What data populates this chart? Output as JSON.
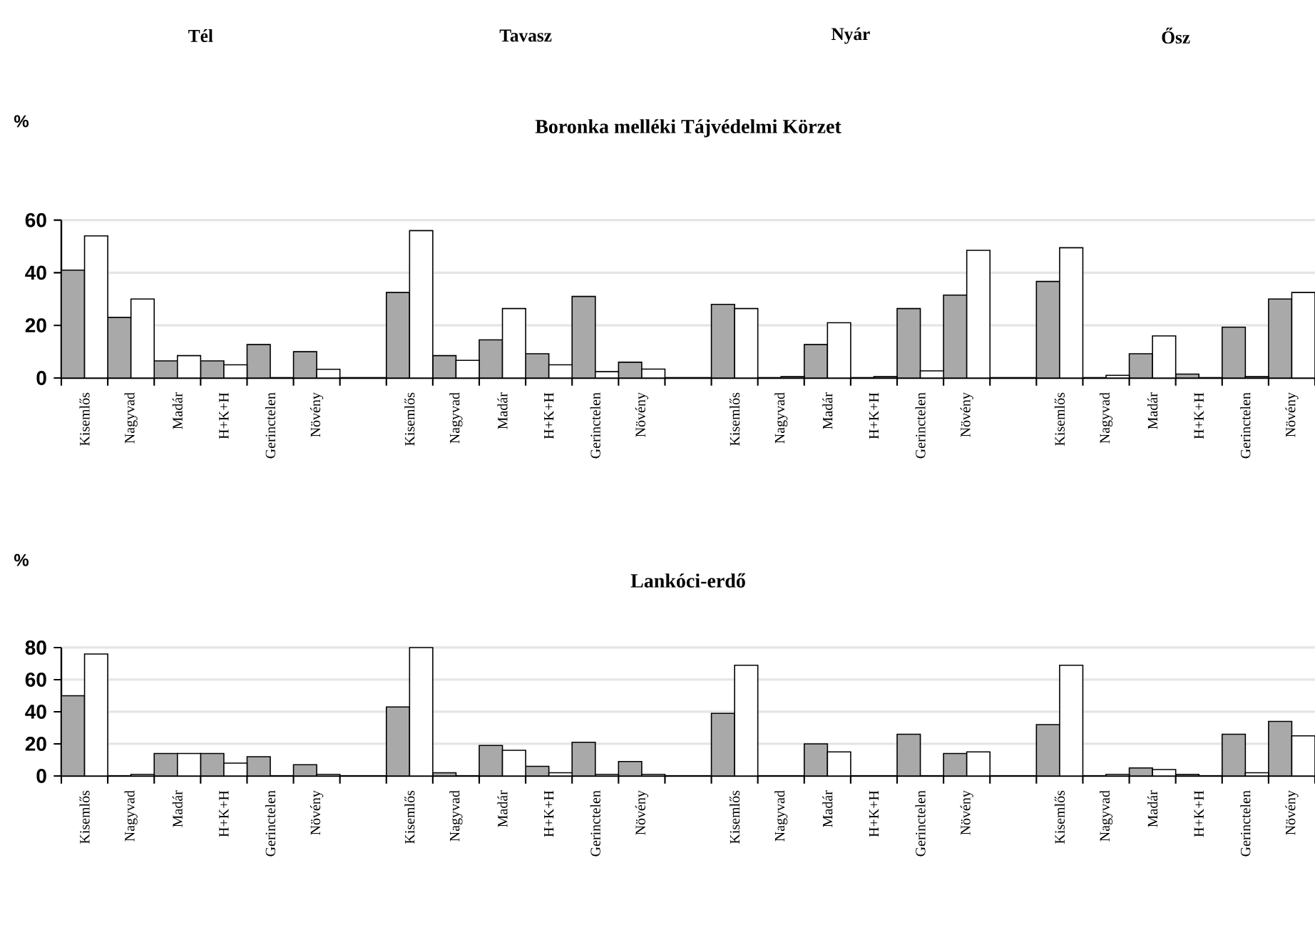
{
  "chart_data": [
    {
      "type": "bar",
      "title": "Boronka melléki Tájvédelmi Körzet",
      "ylabel": "%",
      "annotations": [
        "Tél",
        "Tavasz",
        "Nyár",
        "Ősz"
      ],
      "categories": [
        "Kisemlős",
        "Nagyvad",
        "Madár",
        "H+K+H",
        "Gerinctelen",
        "Növény",
        null,
        "Kisemlős",
        "Nagyvad",
        "Madár",
        "H+K+H",
        "Gerinctelen",
        "Növény",
        null,
        "Kisemlős",
        "Nagyvad",
        "Madár",
        "H+K+H",
        "Gerinctelen",
        "Növény",
        null,
        "Kisemlős",
        "Nagyvad",
        "Madár",
        "H+K+H",
        "Gerinctelen",
        "Növény"
      ],
      "series": [
        {
          "color": "#a9a9a9",
          "values": [
            41,
            23,
            6.5,
            6.5,
            12.7,
            10,
            null,
            32.5,
            8.5,
            14.5,
            9.2,
            31,
            6,
            null,
            28,
            null,
            12.7,
            null,
            26.4,
            31.5,
            null,
            36.7,
            null,
            9.2,
            1.5,
            19.3,
            30
          ]
        },
        {
          "color": "#ffffff",
          "values": [
            54,
            30,
            8.5,
            5,
            null,
            3.3,
            null,
            56,
            6.7,
            26.4,
            5,
            2.4,
            3.4,
            null,
            26.4,
            0.5,
            21,
            0.5,
            2.7,
            48.5,
            null,
            49.5,
            1,
            16,
            null,
            0.5,
            32.5
          ]
        }
      ],
      "ylim": [
        0,
        60
      ],
      "yticks": [
        0,
        20,
        40,
        60
      ],
      "grid": "y"
    },
    {
      "type": "bar",
      "title": "Lankóci-erdő",
      "ylabel": "%",
      "categories": [
        "Kisemlős",
        "Nagyvad",
        "Madár",
        "H+K+H",
        "Gerinctelen",
        "Növény",
        null,
        "Kisemlős",
        "Nagyvad",
        "Madár",
        "H+K+H",
        "Gerinctelen",
        "Növény",
        null,
        "Kisemlős",
        "Nagyvad",
        "Madár",
        "H+K+H",
        "Gerinctelen",
        "Növény",
        null,
        "Kisemlős",
        "Nagyvad",
        "Madár",
        "H+K+H",
        "Gerinctelen",
        "Növény"
      ],
      "series": [
        {
          "color": "#a9a9a9",
          "values": [
            50,
            null,
            14,
            14,
            12,
            7,
            null,
            43,
            2,
            19,
            6,
            21,
            9,
            null,
            39,
            null,
            20,
            null,
            26,
            14,
            null,
            32,
            null,
            5,
            1,
            26,
            34
          ]
        },
        {
          "color": "#ffffff",
          "values": [
            76,
            1,
            14,
            8,
            null,
            1,
            null,
            80,
            null,
            16,
            2,
            1,
            1,
            null,
            69,
            null,
            15,
            null,
            null,
            15,
            null,
            69,
            1,
            4,
            null,
            2,
            25
          ]
        }
      ],
      "ylim": [
        0,
        80
      ],
      "yticks": [
        0,
        20,
        40,
        60,
        80
      ],
      "grid": "y"
    }
  ]
}
